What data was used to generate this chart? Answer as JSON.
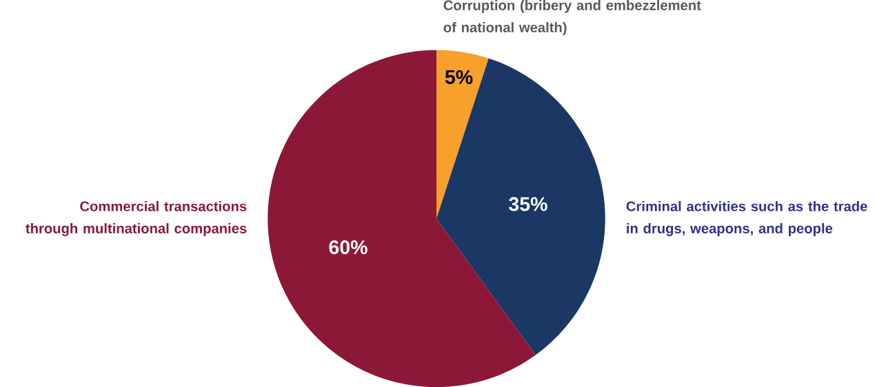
{
  "chart_data": {
    "type": "pie",
    "categories": [
      "Corruption (bribery and embezzlement of national wealth)",
      "Criminal activities such as the trade in drugs, weapons, and people",
      "Commercial transactions through multinational companies"
    ],
    "values": [
      5,
      35,
      60
    ],
    "colors": [
      "#f7a02c",
      "#1b3764",
      "#8c1838"
    ],
    "value_labels": [
      "5%",
      "35%",
      "60%"
    ]
  }
}
